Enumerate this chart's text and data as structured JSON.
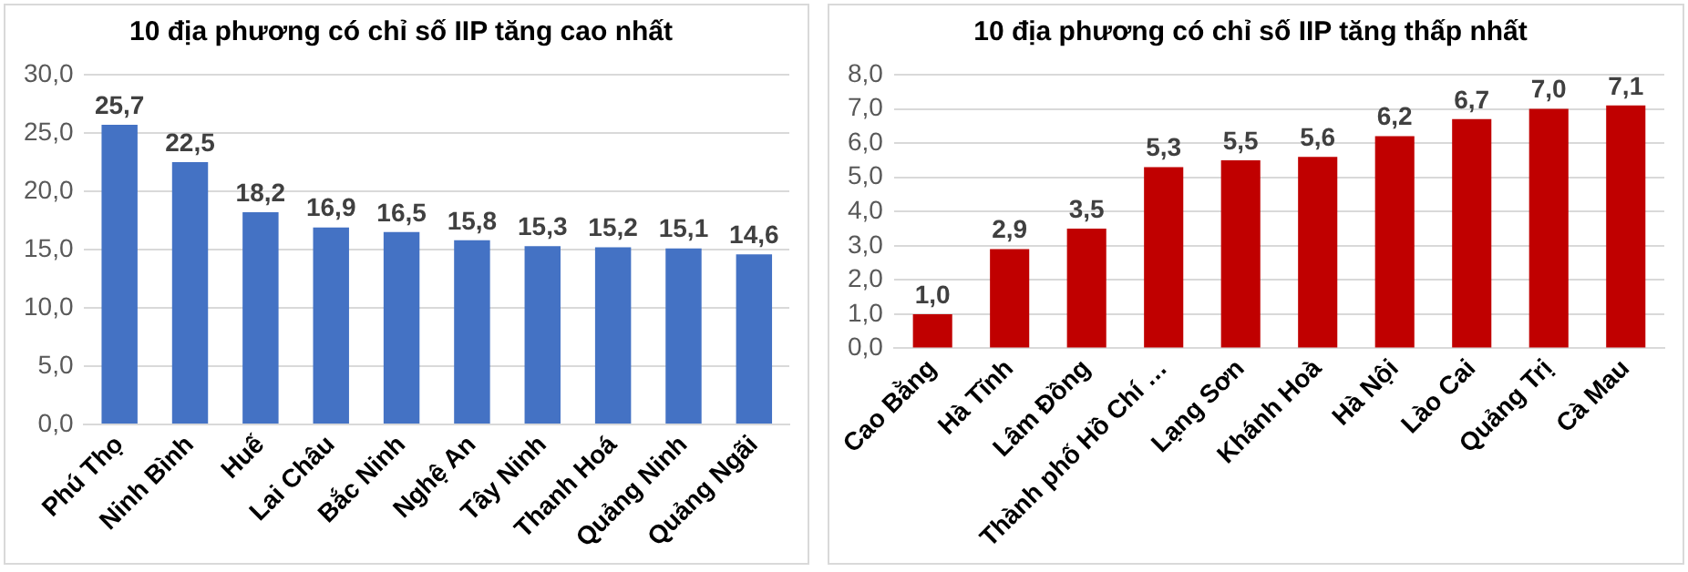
{
  "chart_data": [
    {
      "type": "bar",
      "title": "10 địa phương có chỉ số IIP tăng cao nhất",
      "categories": [
        "Phú Thọ",
        "Ninh Bình",
        "Huế",
        "Lai Châu",
        "Bắc Ninh",
        "Nghệ An",
        "Tây Ninh",
        "Thanh Hoá",
        "Quảng Ninh",
        "Quảng Ngãi"
      ],
      "series": [
        {
          "color": "#4472c4",
          "values": [
            25.7,
            22.5,
            18.2,
            16.9,
            16.5,
            15.8,
            15.3,
            15.2,
            15.1,
            14.6
          ],
          "value_labels": [
            "25,7",
            "22,5",
            "18,2",
            "16,9",
            "16,5",
            "15,8",
            "15,3",
            "15,2",
            "15,1",
            "14,6"
          ]
        }
      ],
      "ylim": [
        0,
        30
      ],
      "yticks": [
        {
          "value": 0,
          "label": "0,0"
        },
        {
          "value": 5,
          "label": "5,0"
        },
        {
          "value": 10,
          "label": "10,0"
        },
        {
          "value": 15,
          "label": "15,0"
        },
        {
          "value": 20,
          "label": "20,0"
        },
        {
          "value": 25,
          "label": "25,0"
        },
        {
          "value": 30,
          "label": "30,0"
        }
      ],
      "grid": "y",
      "legend": false
    },
    {
      "type": "bar",
      "title": "10 địa phương có chỉ số IIP tăng thấp nhất",
      "categories": [
        "Cao Bằng",
        "Hà Tĩnh",
        "Lâm Đồng",
        "Thành phố Hồ Chí …",
        "Lạng Sơn",
        "Khánh Hoà",
        "Hà Nội",
        "Lào Cai",
        "Quảng Trị",
        "Cà Mau"
      ],
      "series": [
        {
          "color": "#c00000",
          "values": [
            1.0,
            2.9,
            3.5,
            5.3,
            5.5,
            5.6,
            6.2,
            6.7,
            7.0,
            7.1
          ],
          "value_labels": [
            "1,0",
            "2,9",
            "3,5",
            "5,3",
            "5,5",
            "5,6",
            "6,2",
            "6,7",
            "7,0",
            "7,1"
          ]
        }
      ],
      "ylim": [
        0,
        8
      ],
      "yticks": [
        {
          "value": 0,
          "label": "0,0"
        },
        {
          "value": 1,
          "label": "1,0"
        },
        {
          "value": 2,
          "label": "2,0"
        },
        {
          "value": 3,
          "label": "3,0"
        },
        {
          "value": 4,
          "label": "4,0"
        },
        {
          "value": 5,
          "label": "5,0"
        },
        {
          "value": 6,
          "label": "6,0"
        },
        {
          "value": 7,
          "label": "7,0"
        },
        {
          "value": 8,
          "label": "8,0"
        }
      ],
      "grid": "y",
      "legend": false
    }
  ]
}
